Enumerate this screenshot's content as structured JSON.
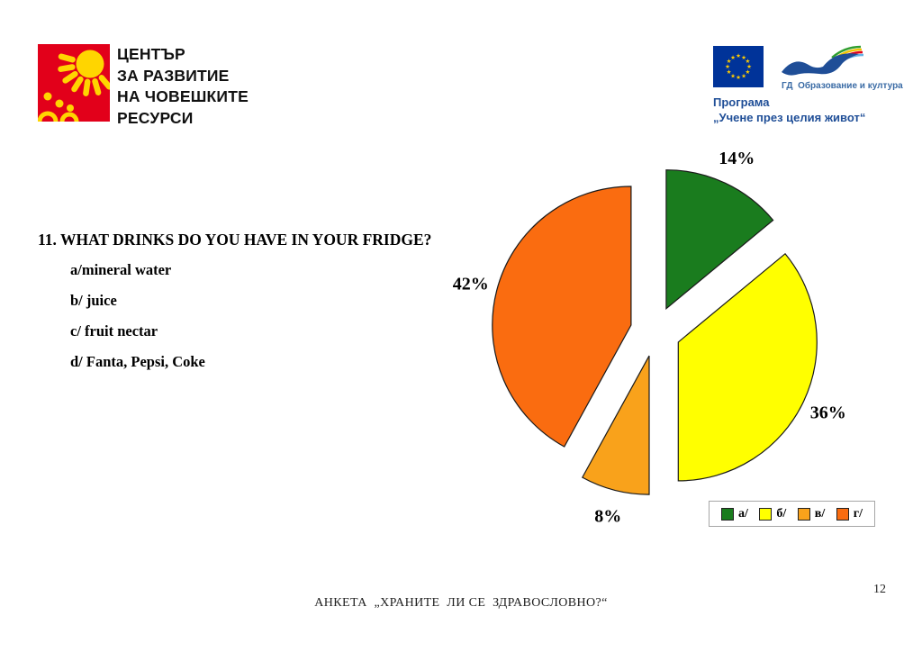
{
  "slide": {
    "org": {
      "name_lines": [
        "ЦЕНТЪР",
        "ЗА РАЗВИТИЕ",
        "НА ЧОВЕШКИТЕ",
        "РЕСУРСИ"
      ],
      "logo_colors": {
        "background": "#e2001a",
        "sun": "#ffd500"
      }
    },
    "eu_program": {
      "dg_label": "ГД  Образование и култура",
      "program_line1": "Програма",
      "program_line2": "„Учене през целия живот“",
      "flag_colors": {
        "field": "#003399",
        "stars": "#ffcc00"
      },
      "swoosh_colors": {
        "bird": "#1f4e97",
        "streamers": [
          "#2f9e2f",
          "#f3c300",
          "#e2001a",
          "#63b1e5"
        ]
      }
    },
    "question": {
      "title": "11. WHAT DRINKS DO YOU HAVE IN YOUR FRIDGE?",
      "options": [
        "a/mineral water",
        "b/ juice",
        "c/ fruit nectar",
        "d/ Fanta, Pepsi, Coke"
      ]
    },
    "footer": {
      "caption": "АНКЕТА  „ХРАНИТЕ  ЛИ СЕ  ЗДРАВОСЛОВНО?“",
      "page_number": "12"
    }
  },
  "chart_data": {
    "type": "pie",
    "categories": [
      "а/",
      "б/",
      "в/",
      "г/"
    ],
    "values": [
      14,
      36,
      8,
      42
    ],
    "labels": [
      "14%",
      "36%",
      "8%",
      "42%"
    ],
    "colors": [
      "#1a7c1e",
      "#ffff00",
      "#f9a21b",
      "#fa6c10"
    ],
    "stroke_color": "#1a1a1a",
    "start_angle_deg": 0,
    "direction": "clockwise",
    "exploded": true,
    "legend_position": "bottom-right",
    "grid": false,
    "title": ""
  }
}
